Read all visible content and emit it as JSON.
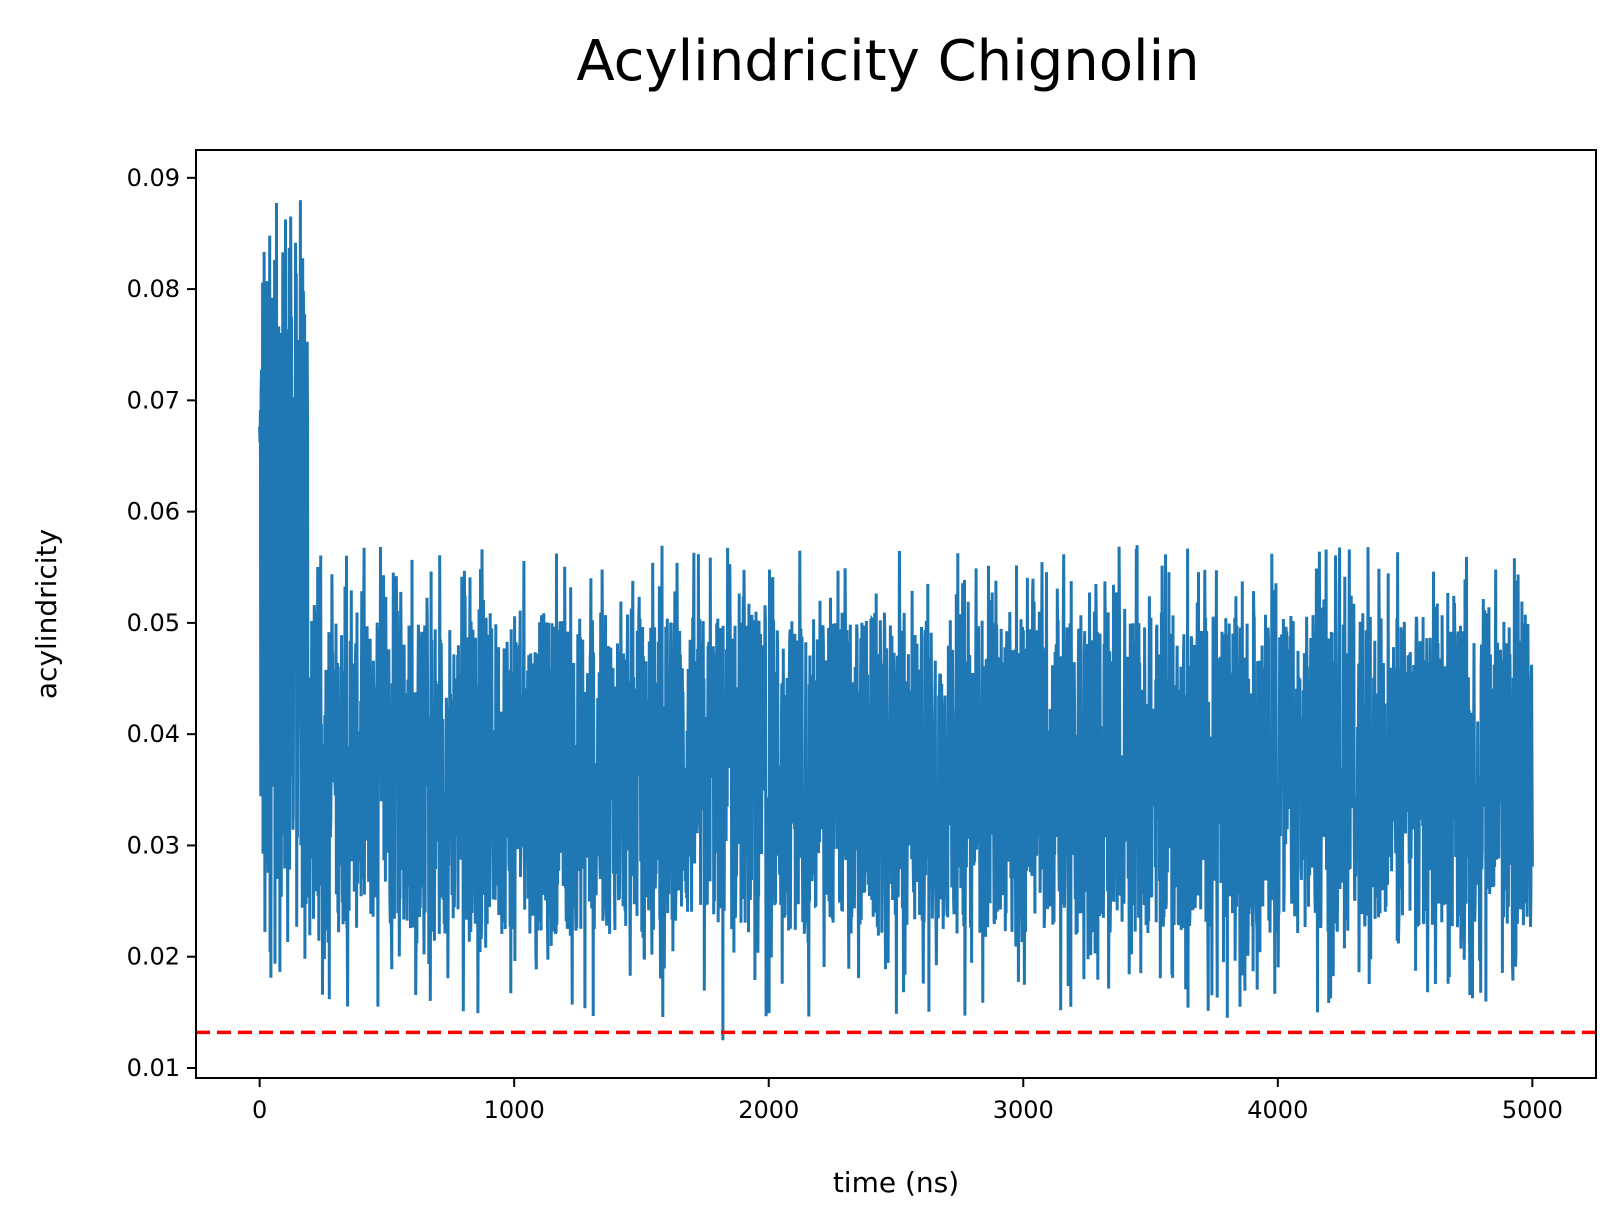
{
  "chart_data": {
    "type": "line",
    "title": "Acylindricity Chignolin",
    "xlabel": "time (ns)",
    "ylabel": "acylindricity",
    "xlim": [
      -250,
      5250
    ],
    "ylim": [
      0.0091,
      0.0925
    ],
    "xticks": [
      0,
      1000,
      2000,
      3000,
      4000,
      5000
    ],
    "yticks": [
      0.01,
      0.02,
      0.03,
      0.04,
      0.05,
      0.06,
      0.07,
      0.08,
      0.09
    ],
    "xtick_labels": [
      "0",
      "1000",
      "2000",
      "3000",
      "4000",
      "5000"
    ],
    "ytick_labels": [
      "0.01",
      "0.02",
      "0.03",
      "0.04",
      "0.05",
      "0.06",
      "0.07",
      "0.08",
      "0.09"
    ],
    "grid": false,
    "legend": "none",
    "series": [
      {
        "color": "#1f77b4",
        "x_range": [
          0,
          5000
        ],
        "initial_phase": {
          "x_end": 190,
          "min": 0.017,
          "max": 0.088,
          "peak_x": 160,
          "peak_value": 0.088
        },
        "steady_phase": {
          "x_start": 190,
          "typical_low": 0.022,
          "typical_high": 0.051,
          "occasional_max": 0.057,
          "occasional_min": 0.0125,
          "min_at_x": 1820
        }
      }
    ],
    "reference_line": {
      "y": 0.0132,
      "color": "#ff0000",
      "style": "dashed"
    }
  }
}
